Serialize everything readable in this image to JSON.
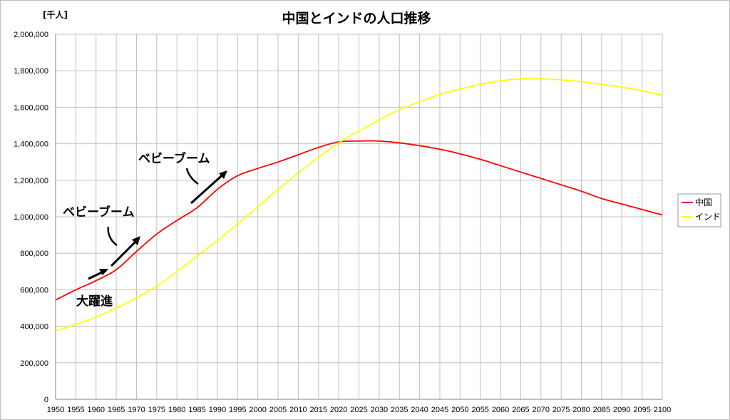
{
  "chart_data": {
    "type": "line",
    "title": "中国とインドの人口推移",
    "unit_label": "[千人]",
    "x": [
      1950,
      1955,
      1960,
      1965,
      1970,
      1975,
      1980,
      1985,
      1990,
      1995,
      2000,
      2005,
      2010,
      2015,
      2020,
      2025,
      2030,
      2035,
      2040,
      2045,
      2050,
      2055,
      2060,
      2065,
      2070,
      2075,
      2080,
      2085,
      2090,
      2095,
      2100
    ],
    "x_tick_labels": [
      "1950",
      "1955",
      "1960",
      "1965",
      "1970",
      "1975",
      "1980",
      "1985",
      "1990",
      "1995",
      "2000",
      "2005",
      "2010",
      "2015",
      "2020",
      "2025",
      "2030",
      "2035",
      "2040",
      "2045",
      "2050",
      "2055",
      "2060",
      "2065",
      "2070",
      "2075",
      "2080",
      "2085",
      "2090",
      "2095",
      "2100"
    ],
    "ylim": [
      0,
      2000000
    ],
    "y_ticks": [
      0,
      200000,
      400000,
      600000,
      800000,
      1000000,
      1200000,
      1400000,
      1600000,
      1800000,
      2000000
    ],
    "y_tick_labels": [
      "0",
      "200,000",
      "400,000",
      "600,000",
      "800,000",
      "1,000,000",
      "1,200,000",
      "1,400,000",
      "1,600,000",
      "1,800,000",
      "2,000,000"
    ],
    "grid": true,
    "legend_position": "right",
    "series": [
      {
        "name": "中国",
        "color": "#ff0000",
        "values": [
          544000,
          600000,
          650000,
          710000,
          810000,
          905000,
          980000,
          1050000,
          1150000,
          1225000,
          1265000,
          1300000,
          1340000,
          1380000,
          1410000,
          1415000,
          1415000,
          1405000,
          1390000,
          1370000,
          1345000,
          1315000,
          1280000,
          1245000,
          1210000,
          1175000,
          1140000,
          1100000,
          1070000,
          1040000,
          1010000
        ]
      },
      {
        "name": "インド",
        "color": "#ffff00",
        "values": [
          376000,
          410000,
          450000,
          500000,
          555000,
          620000,
          700000,
          785000,
          870000,
          960000,
          1055000,
          1150000,
          1240000,
          1325000,
          1405000,
          1470000,
          1530000,
          1585000,
          1630000,
          1670000,
          1700000,
          1725000,
          1745000,
          1755000,
          1755000,
          1750000,
          1740000,
          1725000,
          1710000,
          1690000,
          1665000
        ]
      }
    ],
    "annotations": [
      {
        "text": "ベビーブーム",
        "series": "中国",
        "period": "1962-1970"
      },
      {
        "text": "ベビーブーム",
        "series": "中国",
        "period": "1985-1992"
      },
      {
        "text": "大躍進",
        "series": "中国",
        "period": "1958-1961"
      }
    ]
  }
}
